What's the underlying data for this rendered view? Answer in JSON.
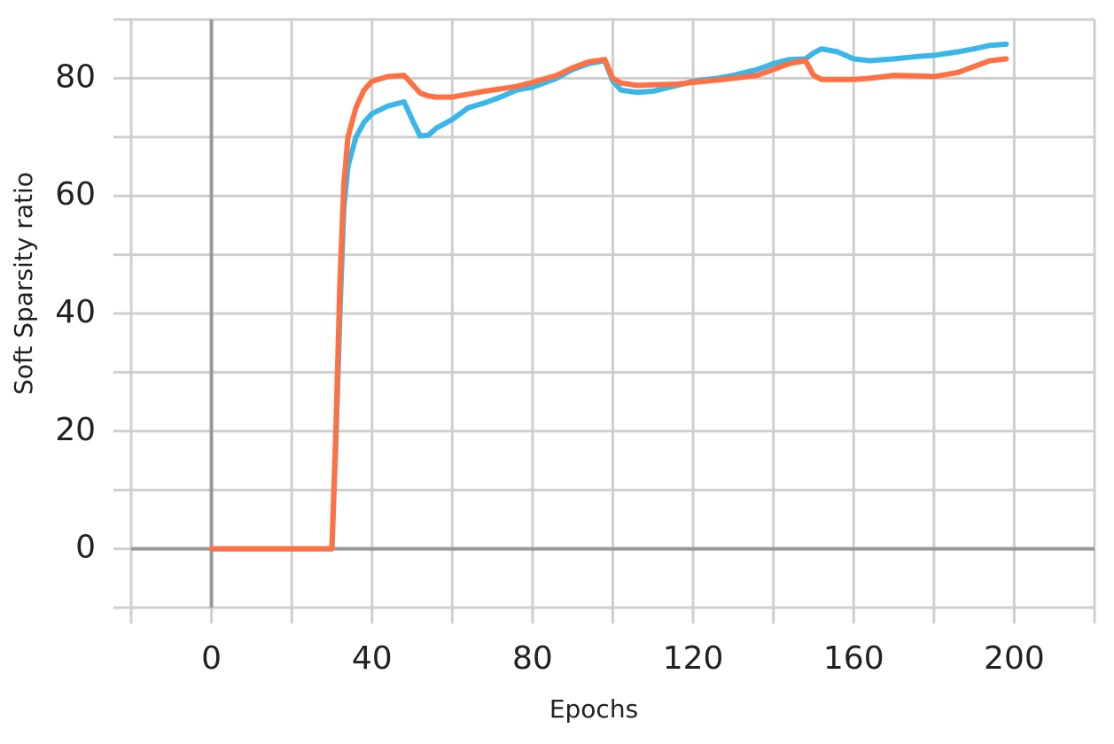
{
  "chart_data": {
    "type": "line",
    "xlabel": "Epochs",
    "ylabel": "Soft Sparsity ratio",
    "x": [
      0,
      30,
      31,
      32,
      33,
      34,
      36,
      38,
      40,
      44,
      48,
      50,
      52,
      54,
      56,
      60,
      64,
      68,
      72,
      76,
      80,
      86,
      90,
      94,
      98,
      100,
      102,
      106,
      110,
      116,
      120,
      126,
      130,
      136,
      140,
      144,
      148,
      150,
      152,
      156,
      160,
      164,
      170,
      176,
      180,
      186,
      190,
      194,
      198
    ],
    "series": [
      {
        "color": "#3bb6ea",
        "values": [
          0,
          0,
          18,
          40,
          58,
          65,
          70,
          72.5,
          74,
          75.3,
          76,
          73,
          70.2,
          70.3,
          71.5,
          73,
          75,
          75.8,
          76.8,
          78,
          78.5,
          80,
          81.5,
          82.5,
          83,
          79.5,
          78,
          77.6,
          77.8,
          78.8,
          79.5,
          80,
          80.5,
          81.5,
          82.5,
          83.2,
          83.3,
          84.3,
          85,
          84.5,
          83.3,
          83,
          83.3,
          83.7,
          83.9,
          84.5,
          85,
          85.6,
          85.8
        ]
      },
      {
        "color": "#ff7043",
        "values": [
          0,
          0,
          20,
          45,
          62,
          70,
          75,
          78,
          79.5,
          80.3,
          80.5,
          79,
          77.5,
          77,
          76.8,
          76.8,
          77.3,
          77.8,
          78.2,
          78.6,
          79.3,
          80.5,
          81.8,
          82.8,
          83.2,
          80,
          79.2,
          78.8,
          78.9,
          79,
          79.3,
          79.7,
          80,
          80.5,
          81.5,
          82.5,
          83,
          80.5,
          79.8,
          79.8,
          79.8,
          80,
          80.5,
          80.4,
          80.3,
          81,
          82,
          83,
          83.3
        ]
      }
    ],
    "xlim": [
      -20,
      220
    ],
    "ylim": [
      -10,
      90
    ],
    "xticks": [
      0,
      40,
      80,
      120,
      160,
      200
    ],
    "yticks": [
      0,
      20,
      40,
      60,
      80
    ],
    "xgrid": [
      -20,
      0,
      20,
      40,
      60,
      80,
      100,
      120,
      140,
      160,
      180,
      200,
      220
    ],
    "ygrid": [
      -10,
      0,
      10,
      20,
      30,
      40,
      50,
      60,
      70,
      80,
      90
    ],
    "grid": true
  }
}
